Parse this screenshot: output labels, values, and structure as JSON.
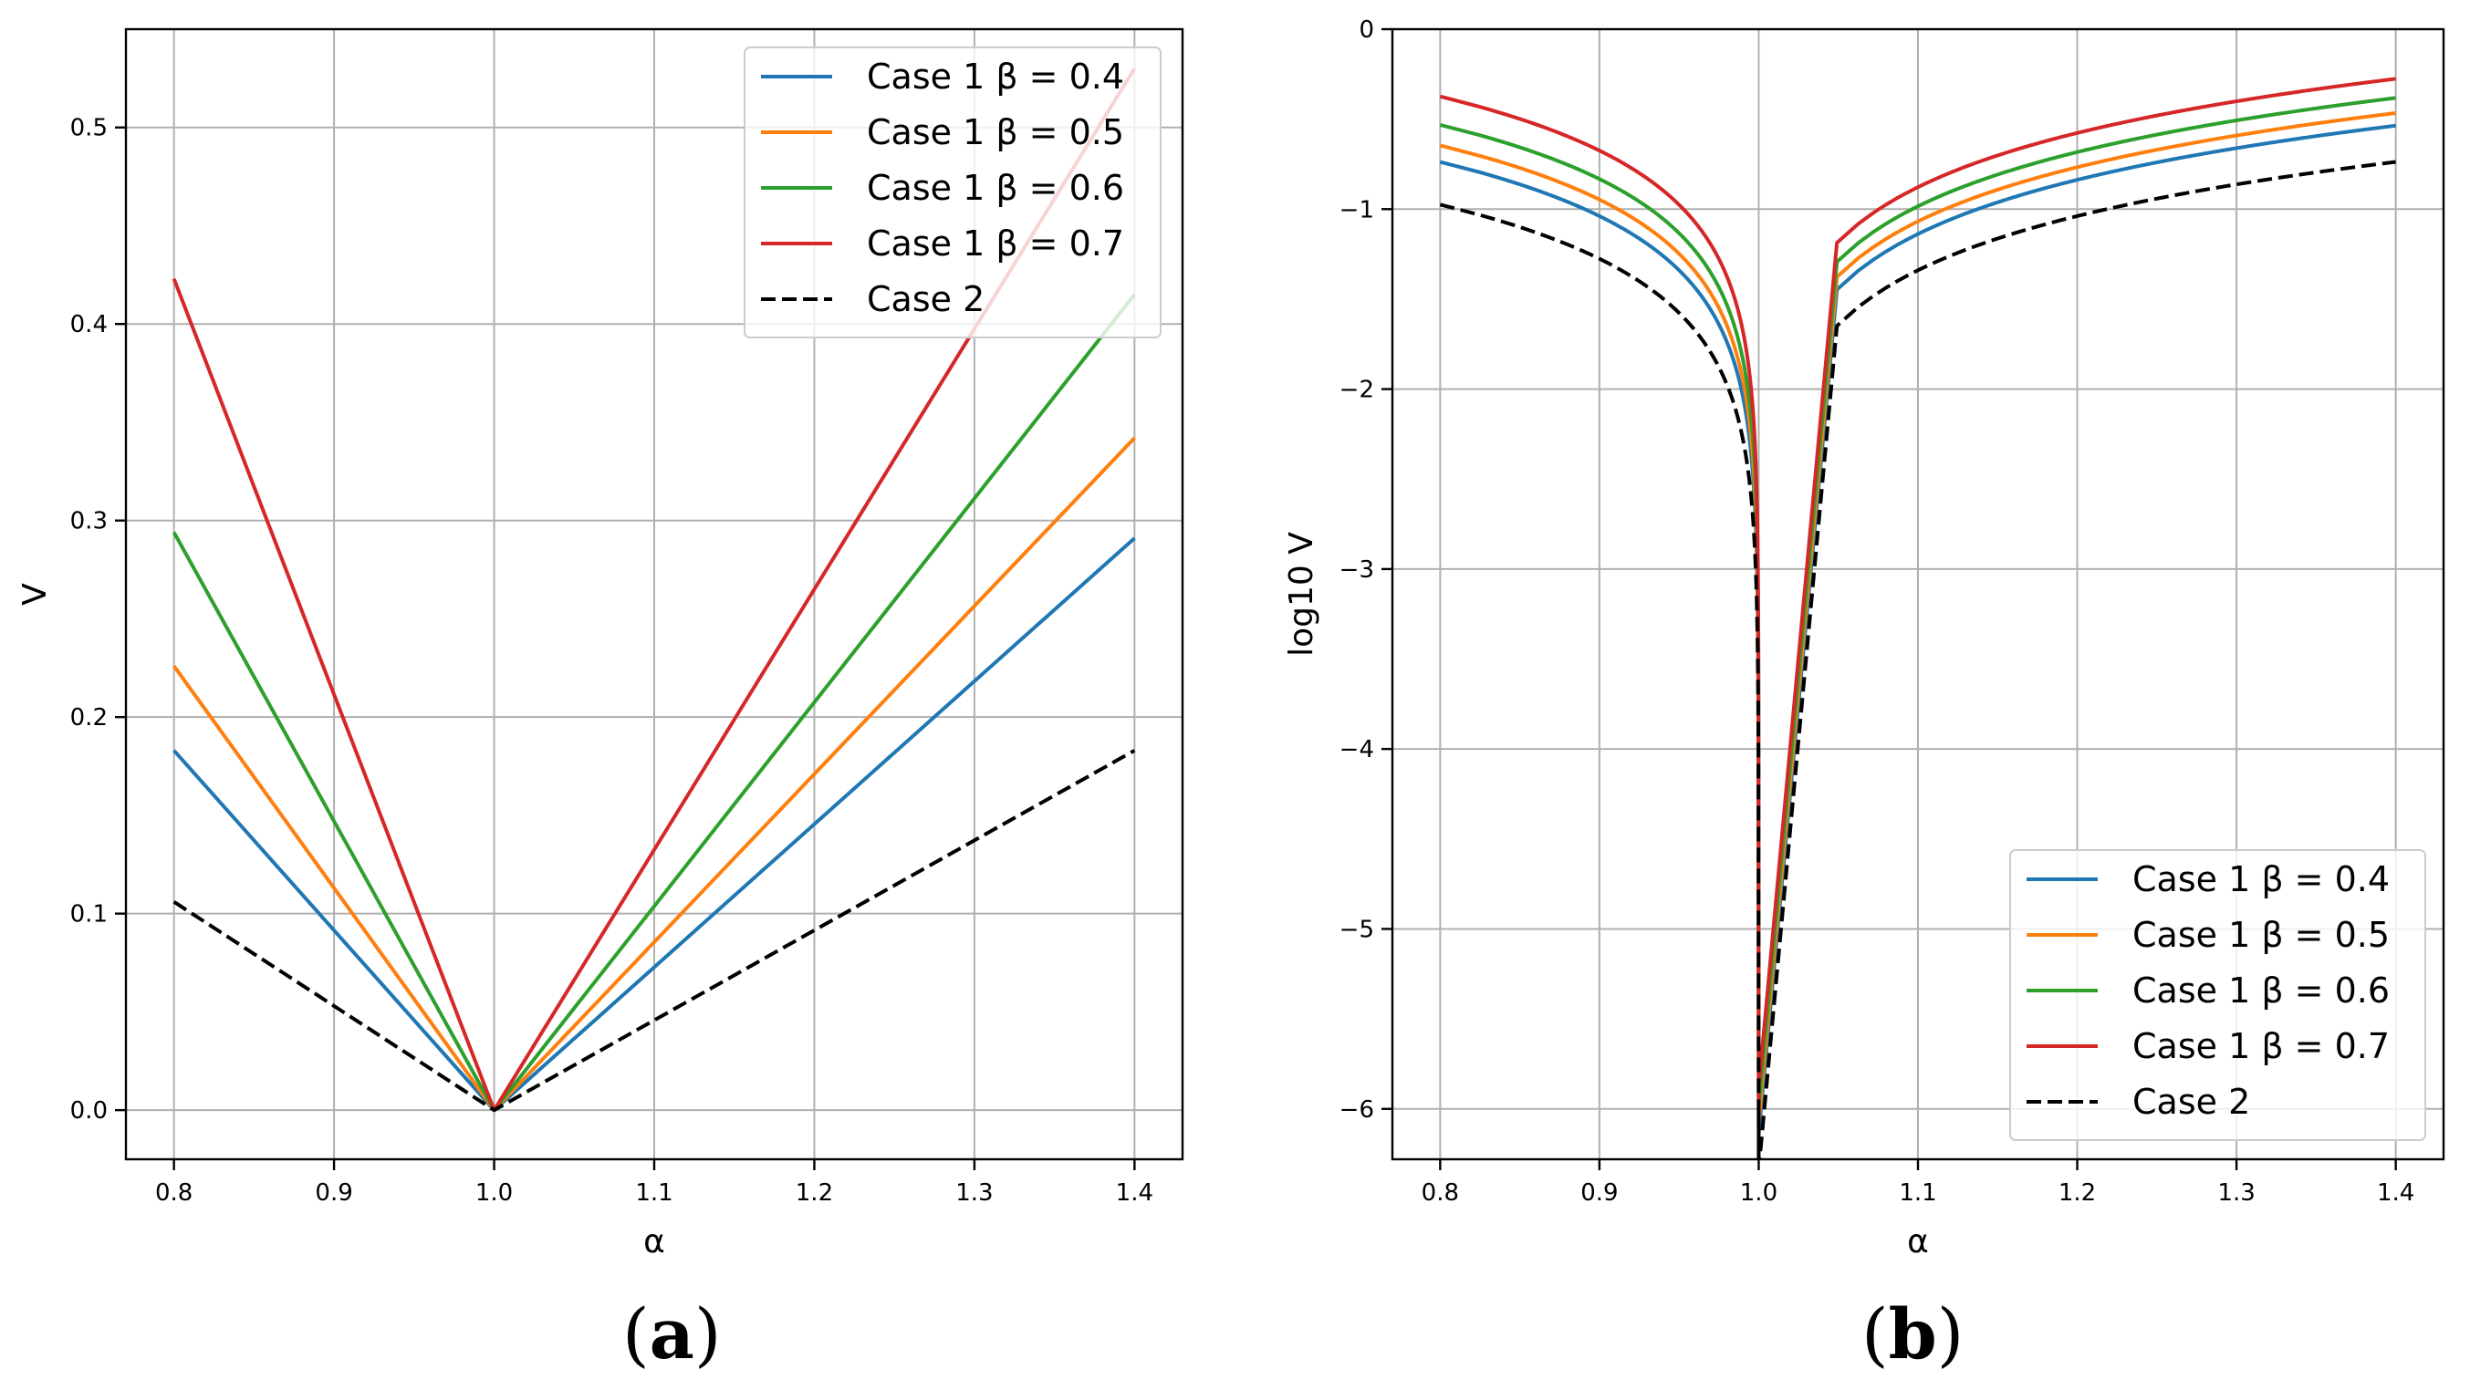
{
  "figure": {
    "label_a_open": "(",
    "label_a": "a",
    "label_a_close": ")",
    "label_b_open": "(",
    "label_b": "b",
    "label_b_close": ")"
  },
  "chart_data": [
    {
      "id": "a",
      "type": "line",
      "title": "",
      "xlabel": "α",
      "ylabel": "V",
      "xlim": [
        0.77,
        1.43
      ],
      "ylim": [
        -0.025,
        0.55
      ],
      "xticks": [
        0.8,
        0.9,
        1.0,
        1.1,
        1.2,
        1.3,
        1.4
      ],
      "xtick_labels": [
        "0.8",
        "0.9",
        "1.0",
        "1.1",
        "1.2",
        "1.3",
        "1.4"
      ],
      "yticks": [
        0.0,
        0.1,
        0.2,
        0.3,
        0.4,
        0.5
      ],
      "ytick_labels": [
        "0.0",
        "0.1",
        "0.2",
        "0.3",
        "0.4",
        "0.5"
      ],
      "grid": true,
      "legend_position": "top-right",
      "series": [
        {
          "name": "Case 1 β = 0.4",
          "color": "#1f77b4",
          "dash": false,
          "x": [
            0.8,
            1.0,
            1.4
          ],
          "y": [
            0.183,
            0.0,
            0.291
          ]
        },
        {
          "name": "Case 1 β = 0.5",
          "color": "#ff7f0e",
          "dash": false,
          "x": [
            0.8,
            1.0,
            1.4
          ],
          "y": [
            0.226,
            0.0,
            0.342
          ]
        },
        {
          "name": "Case 1 β = 0.6",
          "color": "#2ca02c",
          "dash": false,
          "x": [
            0.8,
            1.0,
            1.4
          ],
          "y": [
            0.294,
            0.0,
            0.415
          ]
        },
        {
          "name": "Case 1 β = 0.7",
          "color": "#d62728",
          "dash": false,
          "x": [
            0.8,
            1.0,
            1.4
          ],
          "y": [
            0.423,
            0.0,
            0.53
          ]
        },
        {
          "name": "Case 2",
          "color": "#000000",
          "dash": true,
          "x": [
            0.8,
            1.0,
            1.4
          ],
          "y": [
            0.106,
            0.0,
            0.183
          ]
        }
      ]
    },
    {
      "id": "b",
      "type": "line",
      "title": "",
      "xlabel": "α",
      "ylabel": "log10 V",
      "xlim": [
        0.77,
        1.43
      ],
      "ylim": [
        -6.28,
        0.0
      ],
      "xticks": [
        0.8,
        0.9,
        1.0,
        1.1,
        1.2,
        1.3,
        1.4
      ],
      "xtick_labels": [
        "0.8",
        "0.9",
        "1.0",
        "1.1",
        "1.2",
        "1.3",
        "1.4"
      ],
      "yticks": [
        0,
        -1,
        -2,
        -3,
        -4,
        -5,
        -6
      ],
      "ytick_labels": [
        "0",
        "−1",
        "−2",
        "−3",
        "−4",
        "−5",
        "−6"
      ],
      "grid": true,
      "legend_position": "bottom-right",
      "series": [
        {
          "name": "Case 1 β = 0.4",
          "color": "#1f77b4",
          "dash": false,
          "left": [
            0.8,
            0.183
          ],
          "right": [
            1.4,
            0.291
          ]
        },
        {
          "name": "Case 1 β = 0.5",
          "color": "#ff7f0e",
          "dash": false,
          "left": [
            0.8,
            0.226
          ],
          "right": [
            1.4,
            0.342
          ]
        },
        {
          "name": "Case 1 β = 0.6",
          "color": "#2ca02c",
          "dash": false,
          "left": [
            0.8,
            0.294
          ],
          "right": [
            1.4,
            0.415
          ]
        },
        {
          "name": "Case 1 β = 0.7",
          "color": "#d62728",
          "dash": false,
          "left": [
            0.8,
            0.423
          ],
          "right": [
            1.4,
            0.53
          ]
        },
        {
          "name": "Case 2",
          "color": "#000000",
          "dash": true,
          "left": [
            0.8,
            0.106
          ],
          "right": [
            1.4,
            0.183
          ]
        }
      ]
    }
  ]
}
